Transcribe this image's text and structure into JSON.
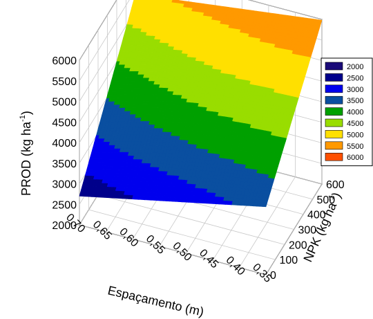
{
  "chart_data": {
    "type": "surface3d",
    "x_axis": {
      "label": "Espaçamento (m)",
      "ticks": [
        "0,70",
        "0,65",
        "0,60",
        "0,55",
        "0,50",
        "0,45",
        "0,40",
        "0,35"
      ],
      "range": [
        0.35,
        0.7
      ]
    },
    "y_axis": {
      "label_main": "NPK (kg ha",
      "label_sup": "-1",
      "label_end": ")",
      "ticks": [
        "0",
        "100",
        "200",
        "300",
        "400",
        "500",
        "600"
      ],
      "range": [
        0,
        600
      ]
    },
    "z_axis": {
      "label_main": "PROD (kg ha",
      "label_sup": "-1",
      "label_end": ")",
      "ticks": [
        "2000",
        "2500",
        "3000",
        "3500",
        "4000",
        "4500",
        "5000",
        "5500",
        "6000"
      ],
      "range": [
        2000,
        6000
      ]
    },
    "corner_values": {
      "x_0_70_npk_0": 2700,
      "x_0_35_npk_0": 3650,
      "x_0_70_npk_600": 5400,
      "x_0_35_npk_600": 5980
    },
    "legend": {
      "placement": "right",
      "levels": [
        {
          "label": "2000",
          "color": "#1a0a78"
        },
        {
          "label": "2500",
          "color": "#00008b"
        },
        {
          "label": "3000",
          "color": "#0000ee"
        },
        {
          "label": "3500",
          "color": "#0a4fa0"
        },
        {
          "label": "4000",
          "color": "#00a000"
        },
        {
          "label": "4500",
          "color": "#99dd00"
        },
        {
          "label": "5000",
          "color": "#ffe000"
        },
        {
          "label": "5500",
          "color": "#ff9900"
        },
        {
          "label": "6000",
          "color": "#ff5000"
        }
      ]
    },
    "grid": true
  }
}
